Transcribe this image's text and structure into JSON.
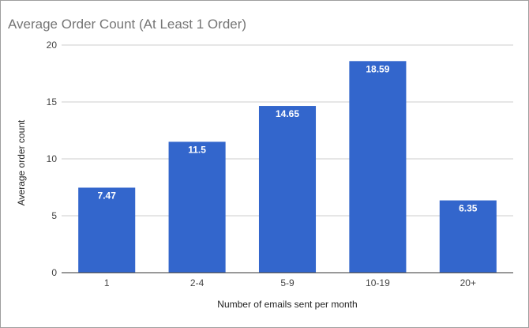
{
  "chart_data": {
    "type": "bar",
    "title": "Average Order Count (At Least 1 Order)",
    "xlabel": "Number of emails sent per month",
    "ylabel": "Average order count",
    "categories": [
      "1",
      "2-4",
      "5-9",
      "10-19",
      "20+"
    ],
    "values": [
      7.47,
      11.5,
      14.65,
      18.59,
      6.35
    ],
    "data_labels": [
      "7.47",
      "11.5",
      "14.65",
      "18.59",
      "6.35"
    ],
    "ylim": [
      0,
      20
    ],
    "yticks": [
      "0",
      "5",
      "10",
      "15",
      "20"
    ],
    "grid": true,
    "legend": "none",
    "bar_color": "#3366cc",
    "grid_color": "#cccccc",
    "baseline_color": "#333333"
  }
}
